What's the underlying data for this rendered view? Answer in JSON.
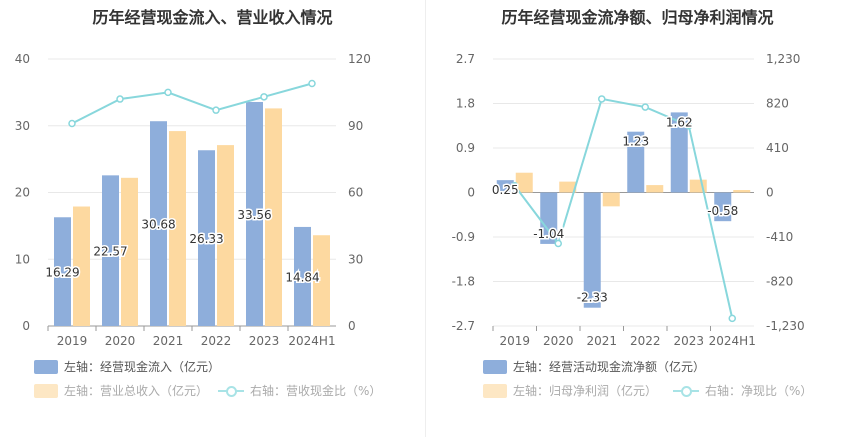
{
  "colors": {
    "blue": "#8eaedb",
    "orange": "#fdd9a0",
    "line": "#88d7dc",
    "grid": "#e8e8e8",
    "axis_text": "#666666"
  },
  "left": {
    "title": "历年经营现金流入、营业收入情况",
    "legend": {
      "inflow": "左轴：经营现金流入（亿元）",
      "revenue": "左轴：营业总收入（亿元）",
      "ratio": "右轴：营收现金比（%）"
    }
  },
  "right": {
    "title": "历年经营现金流净额、归母净利润情况",
    "legend": {
      "net_cf": "左轴：经营活动现金流净额（亿元）",
      "net_profit": "左轴：归母净利润（亿元）",
      "ratio": "右轴：净现比（%）"
    }
  },
  "chart_data": [
    {
      "type": "bar",
      "title": "历年经营现金流入、营业收入情况",
      "categories": [
        "2019",
        "2020",
        "2021",
        "2022",
        "2023",
        "2024H1"
      ],
      "series": [
        {
          "name": "经营现金流入（亿元）",
          "axis": "left",
          "type": "bar",
          "color": "#8eaedb",
          "values": [
            16.29,
            22.57,
            30.68,
            26.33,
            33.56,
            14.84
          ],
          "labels": [
            "16.29",
            "22.57",
            "30.68",
            "26.33",
            "33.56",
            "14.84"
          ]
        },
        {
          "name": "营业总收入（亿元）",
          "axis": "left",
          "type": "bar",
          "color": "#fdd9a0",
          "values": [
            17.9,
            22.2,
            29.2,
            27.1,
            32.6,
            13.6
          ]
        },
        {
          "name": "营收现金比（%）",
          "axis": "right",
          "type": "line",
          "color": "#88d7dc",
          "values": [
            91,
            102,
            105,
            97,
            103,
            109
          ]
        }
      ],
      "y_left": {
        "min": 0,
        "max": 40,
        "ticks": [
          "0",
          "10",
          "20",
          "30",
          "40"
        ]
      },
      "y_right": {
        "min": 0,
        "max": 120,
        "ticks": [
          "0",
          "30",
          "60",
          "90",
          "120"
        ]
      },
      "grid": true,
      "legend_position": "bottom"
    },
    {
      "type": "bar",
      "title": "历年经营现金流净额、归母净利润情况",
      "categories": [
        "2019",
        "2020",
        "2021",
        "2022",
        "2023",
        "2024H1"
      ],
      "series": [
        {
          "name": "经营活动现金流净额（亿元）",
          "axis": "left",
          "type": "bar",
          "color": "#8eaedb",
          "values": [
            0.25,
            -1.04,
            -2.33,
            1.23,
            1.62,
            -0.58
          ],
          "labels": [
            "0.25",
            "-1.04",
            "-2.33",
            "1.23",
            "1.62",
            "-0.58"
          ]
        },
        {
          "name": "归母净利润（亿元）",
          "axis": "left",
          "type": "bar",
          "color": "#fdd9a0",
          "values": [
            0.4,
            0.22,
            -0.28,
            0.15,
            0.26,
            0.05
          ]
        },
        {
          "name": "净现比（%）",
          "axis": "right",
          "type": "line",
          "color": "#88d7dc",
          "values": [
            62,
            -470,
            862,
            787,
            615,
            -1160
          ]
        }
      ],
      "y_left": {
        "min": -2.7,
        "max": 2.7,
        "ticks": [
          "-2.7",
          "-1.8",
          "-0.9",
          "0",
          "0.9",
          "1.8",
          "2.7"
        ]
      },
      "y_right": {
        "min": -1230,
        "max": 1230,
        "ticks": [
          "-1,230",
          "-820",
          "-410",
          "0",
          "410",
          "820",
          "1,230"
        ]
      },
      "grid": true,
      "legend_position": "bottom"
    }
  ]
}
